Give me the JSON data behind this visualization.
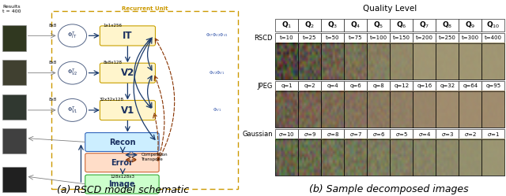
{
  "fig_width": 6.4,
  "fig_height": 2.49,
  "dpi": 100,
  "caption_a": "(a) RSCD model schematic",
  "caption_b": "(b) Sample decomposed images",
  "caption_fontsize": 9,
  "right_panel": {
    "title": "Quality Level",
    "col_headers": [
      "Q$_1$",
      "Q$_2$",
      "Q$_3$",
      "Q$_4$",
      "Q$_5$",
      "Q$_6$",
      "Q$_7$",
      "Q$_8$",
      "Q$_9$",
      "Q$_{10}$"
    ],
    "row_labels": [
      "RSCD",
      "JPEG",
      "Gaussian"
    ],
    "rscd_params": [
      "t=10",
      "t=25",
      "t=50",
      "t=75",
      "t=100",
      "t=150",
      "t=200",
      "t=250",
      "t=300",
      "t=400"
    ],
    "jpeg_params": [
      "q=1",
      "q=2",
      "q=4",
      "q=6",
      "q=8",
      "q=12",
      "q=16",
      "q=32",
      "q=64",
      "q=95"
    ],
    "gaussian_params": [
      "$\\sigma$=10",
      "$\\sigma$=9",
      "$\\sigma$=8",
      "$\\sigma$=7",
      "$\\sigma$=6",
      "$\\sigma$=5",
      "$\\sigma$=4",
      "$\\sigma$=3",
      "$\\sigma$=2",
      "$\\sigma$=1"
    ],
    "header_fontsize": 6.5,
    "param_fontsize": 5,
    "row_label_fontsize": 6,
    "title_fontsize": 7.5
  },
  "rscd_img_colors": [
    [
      "#1a2030",
      "#3a3a20",
      "#4a5535",
      "#585e3a",
      "#5a6040",
      "#5c6242",
      "#5e6444",
      "#5e6444",
      "#5e6444",
      "#5f6545"
    ],
    [
      "#2a3545",
      "#3a4030",
      "#4a5535",
      "#585e3a",
      "#5a6040",
      "#5c6242",
      "#5e6444",
      "#5e6444",
      "#5e6444",
      "#5f6545"
    ],
    [
      "#505060",
      "#505550",
      "#505848",
      "#505848",
      "#505848",
      "#505848",
      "#505848",
      "#505848",
      "#505848",
      "#505848"
    ],
    [
      "#606070",
      "#606065",
      "#606060",
      "#606060",
      "#606060",
      "#606060",
      "#606060",
      "#606060",
      "#606060",
      "#606060"
    ],
    [
      "#505060",
      "#505560",
      "#505a58",
      "#505a58",
      "#505a58",
      "#505a58",
      "#505a58",
      "#505a58",
      "#505a58",
      "#505a58"
    ]
  ],
  "jpeg_img_colors": [
    [
      "#806050",
      "#907060",
      "#a08070",
      "#a08070",
      "#a08572",
      "#a08572",
      "#a08572",
      "#a08572",
      "#a08572",
      "#a08572"
    ],
    [
      "#907060",
      "#a07868",
      "#a88070",
      "#a88070",
      "#a88070",
      "#a88070",
      "#a88070",
      "#a88070",
      "#a88070",
      "#a88070"
    ],
    [
      "#887060",
      "#907860",
      "#988060",
      "#988060",
      "#988060",
      "#988060",
      "#988060",
      "#988060",
      "#988060",
      "#988060"
    ],
    [
      "#705848",
      "#806050",
      "#887060",
      "#887060",
      "#887060",
      "#887060",
      "#887060",
      "#887060",
      "#887060",
      "#887060"
    ],
    [
      "#604838",
      "#705040",
      "#786050",
      "#786050",
      "#786050",
      "#786050",
      "#786050",
      "#786050",
      "#786050",
      "#786050"
    ]
  ],
  "gauss_img_colors": [
    [
      "#888878",
      "#888870",
      "#887868",
      "#886858",
      "#886858",
      "#887060",
      "#887868",
      "#888870",
      "#888870",
      "#909878"
    ],
    [
      "#7a9070",
      "#809070",
      "#888878",
      "#888870",
      "#888870",
      "#888870",
      "#888870",
      "#888870",
      "#909878",
      "#909878"
    ],
    [
      "#607848",
      "#708050",
      "#787860",
      "#787860",
      "#787860",
      "#787860",
      "#787860",
      "#787860",
      "#807870",
      "#808878"
    ],
    [
      "#506840",
      "#607040",
      "#686858",
      "#686858",
      "#686858",
      "#686858",
      "#686858",
      "#686858",
      "#706868",
      "#706870"
    ],
    [
      "#405830",
      "#506030",
      "#585848",
      "#585848",
      "#585848",
      "#585848",
      "#585848",
      "#585848",
      "#585858",
      "#586060"
    ]
  ]
}
